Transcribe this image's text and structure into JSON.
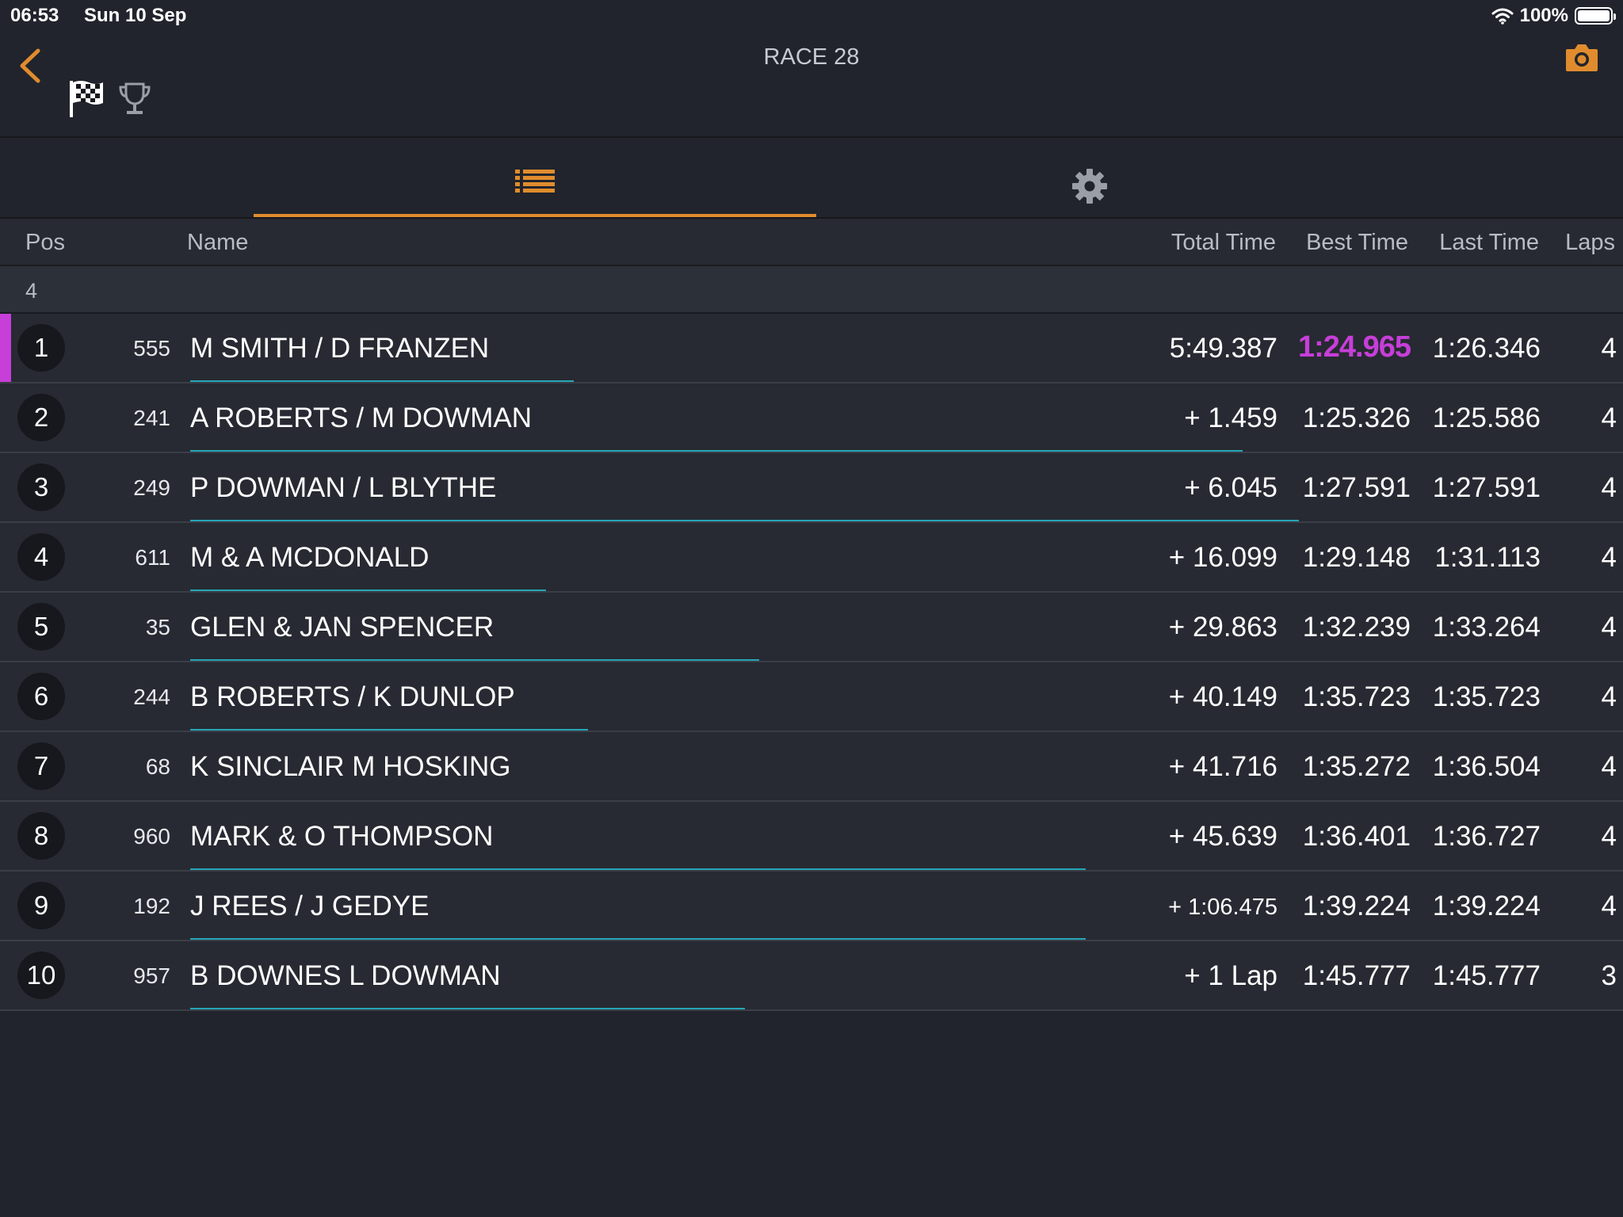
{
  "status_bar": {
    "time": "06:53",
    "date": "Sun 10 Sep",
    "battery": "100%"
  },
  "header": {
    "title": "RACE 28"
  },
  "icons": {
    "back": "chevron-left-icon",
    "flag": "checkered-flag-icon",
    "trophy": "trophy-icon",
    "camera": "camera-icon",
    "list": "list-icon",
    "settings": "gear-icon"
  },
  "colors": {
    "accent": "#e08c2e",
    "fastest": "#c73ed9",
    "progress": "#27a5b8"
  },
  "columns": {
    "pos": "Pos",
    "name": "Name",
    "total": "Total Time",
    "best": "Best Time",
    "last": "Last Time",
    "laps": "Laps"
  },
  "group_label": "4",
  "results": [
    {
      "pos": "1",
      "number": "555",
      "name": "M SMITH / D FRANZEN",
      "total": "5:49.387",
      "best": "1:24.965",
      "last": "1:26.346",
      "laps": "4",
      "progress": 0.27,
      "leader": true,
      "fastest": true
    },
    {
      "pos": "2",
      "number": "241",
      "name": "A ROBERTS / M DOWMAN",
      "total": "+ 1.459",
      "best": "1:25.326",
      "last": "1:25.586",
      "laps": "4",
      "progress": 0.74
    },
    {
      "pos": "3",
      "number": "249",
      "name": "P DOWMAN / L BLYTHE",
      "total": "+ 6.045",
      "best": "1:27.591",
      "last": "1:27.591",
      "laps": "4",
      "progress": 0.78
    },
    {
      "pos": "4",
      "number": "611",
      "name": "M & A MCDONALD",
      "total": "+ 16.099",
      "best": "1:29.148",
      "last": "1:31.113",
      "laps": "4",
      "progress": 0.25
    },
    {
      "pos": "5",
      "number": "35",
      "name": "GLEN & JAN SPENCER",
      "total": "+ 29.863",
      "best": "1:32.239",
      "last": "1:33.264",
      "laps": "4",
      "progress": 0.4
    },
    {
      "pos": "6",
      "number": "244",
      "name": "B ROBERTS / K DUNLOP",
      "total": "+ 40.149",
      "best": "1:35.723",
      "last": "1:35.723",
      "laps": "4",
      "progress": 0.28
    },
    {
      "pos": "7",
      "number": "68",
      "name": "K SINCLAIR M HOSKING",
      "total": "+ 41.716",
      "best": "1:35.272",
      "last": "1:36.504",
      "laps": "4",
      "progress": 0.0
    },
    {
      "pos": "8",
      "number": "960",
      "name": "MARK & O THOMPSON",
      "total": "+ 45.639",
      "best": "1:36.401",
      "last": "1:36.727",
      "laps": "4",
      "progress": 0.63
    },
    {
      "pos": "9",
      "number": "192",
      "name": "J REES / J GEDYE",
      "total": "+ 1:06.475",
      "best": "1:39.224",
      "last": "1:39.224",
      "laps": "4",
      "progress": 0.63,
      "small_total": true
    },
    {
      "pos": "10",
      "number": "957",
      "name": "B DOWNES L DOWMAN",
      "total": "+ 1 Lap",
      "best": "1:45.777",
      "last": "1:45.777",
      "laps": "3",
      "progress": 0.39
    }
  ]
}
